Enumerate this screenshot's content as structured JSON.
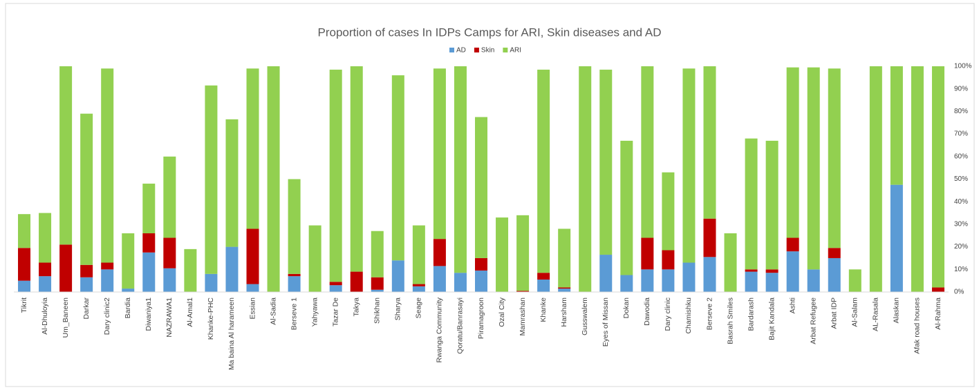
{
  "chart_data": {
    "type": "stacked_bar",
    "title": "Proportion of cases In IDPs Camps for ARI, Skin diseases and AD",
    "categories": [
      "Tikrit",
      "Al-Dhuloyia",
      "Um_Baneen",
      "Darkar",
      "Dary clinic2",
      "Bardia",
      "Diwaniya1",
      "NAZRAWA1",
      "Al-Amal1",
      "Khanke-PHC",
      "Ma baina Al harameen",
      "Essian",
      "Al-Sadia",
      "Berseve 1",
      "Yahyawa",
      "Tazar De",
      "Takya",
      "Shikhan",
      "Sharya",
      "Seage",
      "Rwanga Community",
      "Qoratu/Banrasayi",
      "Piramagroon",
      "Ozal City",
      "Mamrashan",
      "Khanke",
      "Harsham",
      "Gusswalem",
      "Eyes of Missan",
      "Dokan",
      "Dawodia",
      "Dary clinic",
      "Chamishku",
      "Berseve 2",
      "Basrah Smiles",
      "Bardarash",
      "Bajit Kandala",
      "Ashti",
      "Arbat Refugee",
      "Arbat IDP",
      "Al-Salam",
      "AL-Rasala",
      "Alaskan",
      "Afak road houses",
      "Al-Rahma"
    ],
    "series": [
      {
        "name": "AD",
        "color": "#5b9bd5",
        "values": [
          5,
          7,
          0,
          6.5,
          10,
          1.5,
          17.5,
          10.5,
          0,
          8,
          20,
          3.5,
          0,
          7,
          0,
          3,
          0,
          1,
          14,
          2.5,
          11.5,
          8.5,
          9.5,
          0,
          0,
          5.5,
          1.5,
          0,
          16.5,
          7.5,
          10,
          10,
          13,
          15.5,
          0,
          9,
          8.5,
          18,
          10,
          15,
          0,
          0,
          47.5,
          0,
          0
        ]
      },
      {
        "name": "Skin",
        "color": "#c00000",
        "values": [
          14.5,
          6,
          21,
          5.5,
          3,
          0,
          8.5,
          13.5,
          0,
          0,
          0,
          24.5,
          0,
          1,
          0,
          1.5,
          9,
          5.5,
          0,
          1,
          12,
          0,
          5.5,
          0,
          0.5,
          3,
          0.5,
          0,
          0,
          0,
          14,
          8.5,
          0,
          17,
          0,
          1,
          1.5,
          6,
          0,
          4.5,
          0,
          0,
          0,
          0,
          2
        ]
      },
      {
        "name": "ARI",
        "color": "#92d050",
        "values": [
          15,
          22,
          79,
          67,
          86,
          24.5,
          22,
          36,
          19,
          83.5,
          56.5,
          71,
          100,
          42,
          29.5,
          94,
          91,
          20.5,
          82,
          26,
          75.5,
          91.5,
          62.5,
          33,
          33.5,
          90,
          26,
          100,
          82,
          59.5,
          76,
          34.5,
          86,
          67.5,
          26,
          58,
          57,
          75.5,
          89.5,
          79.5,
          10,
          100,
          52.5,
          100,
          98
        ]
      }
    ],
    "ylim": [
      0,
      100
    ],
    "yticks": [
      {
        "value": 0,
        "label": "0%"
      },
      {
        "value": 10,
        "label": "10%"
      },
      {
        "value": 20,
        "label": "20%"
      },
      {
        "value": 30,
        "label": "30%"
      },
      {
        "value": 40,
        "label": "40%"
      },
      {
        "value": 50,
        "label": "50%"
      },
      {
        "value": 60,
        "label": "60%"
      },
      {
        "value": 70,
        "label": "70%"
      },
      {
        "value": 80,
        "label": "80%"
      },
      {
        "value": 90,
        "label": "90%"
      },
      {
        "value": 100,
        "label": "100%"
      }
    ],
    "legend": "top"
  }
}
